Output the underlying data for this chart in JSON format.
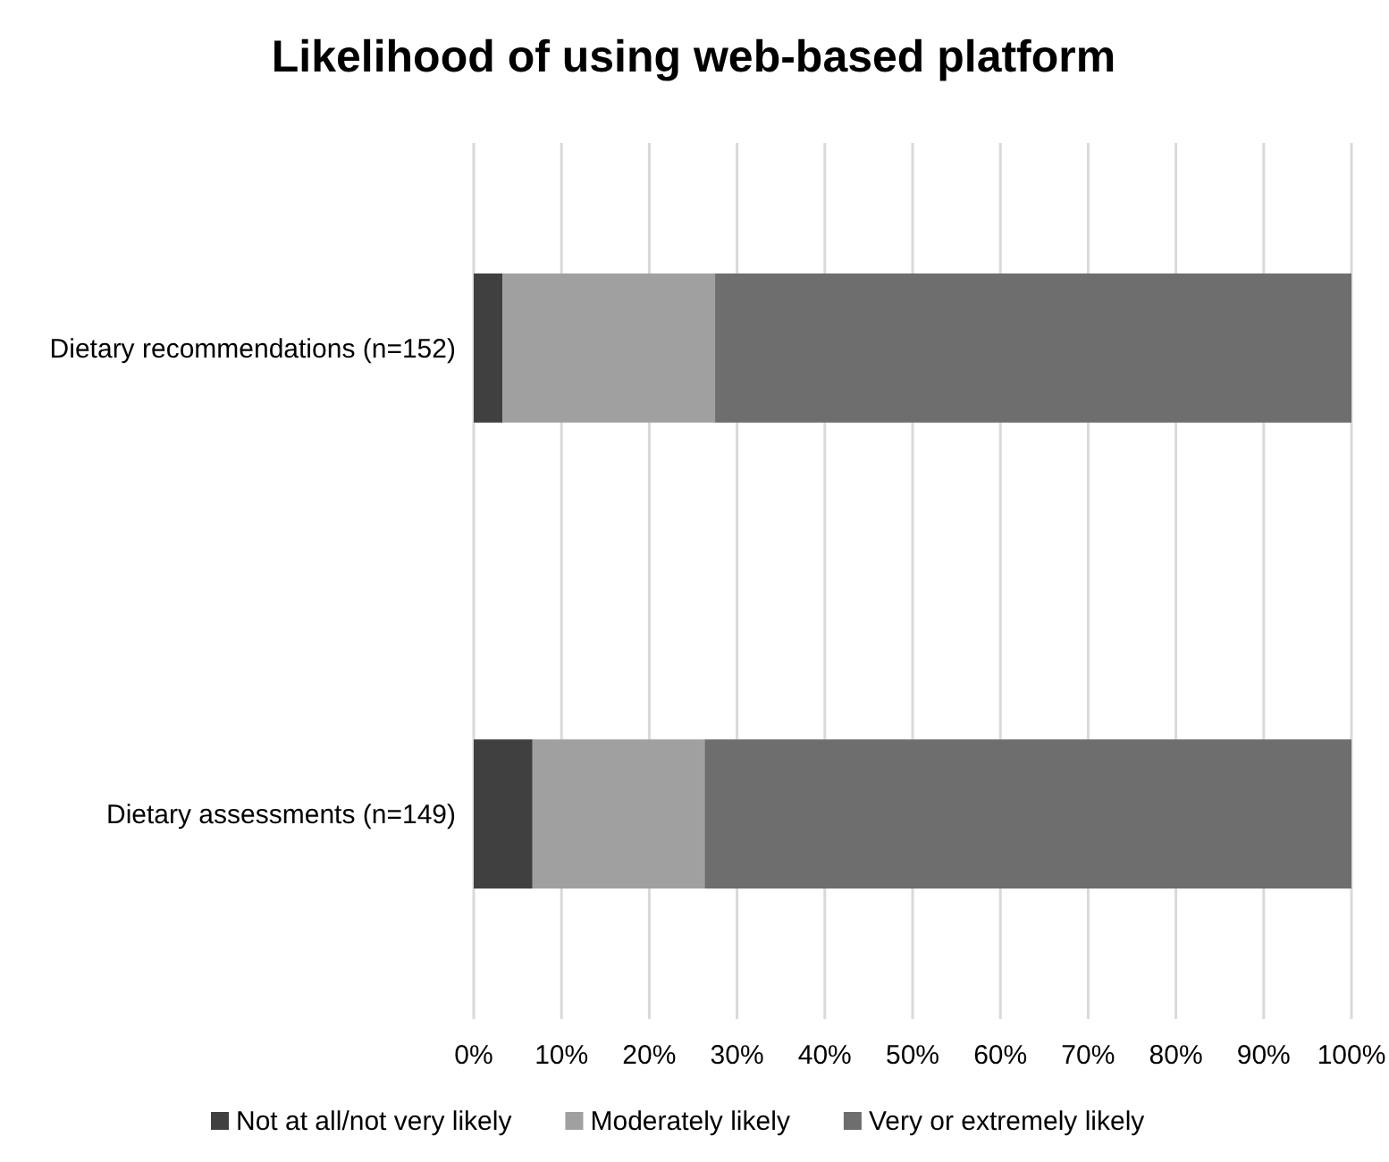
{
  "chart_data": {
    "type": "bar",
    "orientation": "horizontal",
    "stacked": true,
    "title": "Likelihood of using web-based platform",
    "categories": [
      "Dietary recommendations (n=152)",
      "Dietary assessments (n=149)"
    ],
    "series": [
      {
        "name": "Not at all/not very likely",
        "color": "#404040",
        "values": [
          3.3,
          6.7
        ]
      },
      {
        "name": "Moderately likely",
        "color": "#a0a0a0",
        "values": [
          24.2,
          19.6
        ]
      },
      {
        "name": "Very or extremely likely",
        "color": "#6e6e6e",
        "values": [
          72.5,
          73.7
        ]
      }
    ],
    "xlim": [
      0,
      100
    ],
    "xticks": [
      {
        "value": 0,
        "label": "0%"
      },
      {
        "value": 10,
        "label": "10%"
      },
      {
        "value": 20,
        "label": "20%"
      },
      {
        "value": 30,
        "label": "30%"
      },
      {
        "value": 40,
        "label": "40%"
      },
      {
        "value": 50,
        "label": "50%"
      },
      {
        "value": 60,
        "label": "60%"
      },
      {
        "value": 70,
        "label": "70%"
      },
      {
        "value": 80,
        "label": "80%"
      },
      {
        "value": 90,
        "label": "90%"
      },
      {
        "value": 100,
        "label": "100%"
      }
    ],
    "grid": "x",
    "legend": "bottom"
  }
}
